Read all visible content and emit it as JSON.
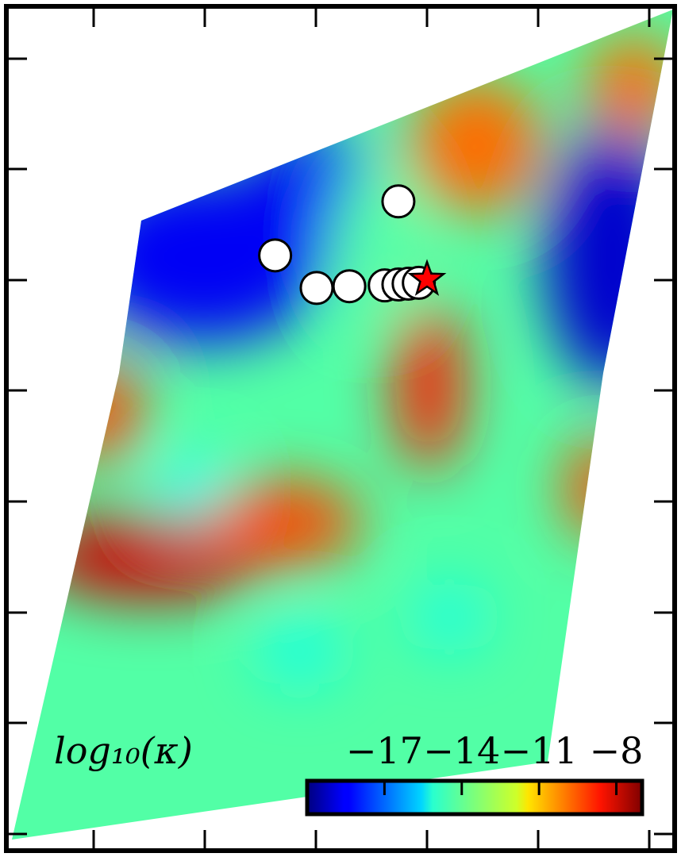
{
  "chart_data": {
    "type": "heatmap",
    "title": "",
    "xlabel": "",
    "ylabel": "",
    "grid": false,
    "colormap": "jet",
    "colorbar": {
      "label": "log₁₀(κ)",
      "range": [
        -20,
        -7
      ],
      "ticks": [
        -17,
        -14,
        -11,
        -8
      ],
      "tick_labels": [
        "−17",
        "−14",
        "−11",
        "−8"
      ],
      "placement": "bottom-right"
    },
    "field_blobs": [
      {
        "x": 0.3,
        "y": 0.3,
        "rx": 0.18,
        "ry": 0.1,
        "value": -18.5
      },
      {
        "x": 0.46,
        "y": 0.22,
        "rx": 0.1,
        "ry": 0.07,
        "value": -18.5
      },
      {
        "x": 0.9,
        "y": 0.3,
        "rx": 0.1,
        "ry": 0.15,
        "value": -19.0
      },
      {
        "x": 0.7,
        "y": 0.17,
        "rx": 0.1,
        "ry": 0.08,
        "value": -10.0
      },
      {
        "x": 0.93,
        "y": 0.1,
        "rx": 0.07,
        "ry": 0.06,
        "value": -10.0
      },
      {
        "x": 0.63,
        "y": 0.45,
        "rx": 0.05,
        "ry": 0.1,
        "value": -9.0
      },
      {
        "x": 0.15,
        "y": 0.48,
        "rx": 0.06,
        "ry": 0.06,
        "value": -9.5
      },
      {
        "x": 0.22,
        "y": 0.65,
        "rx": 0.17,
        "ry": 0.05,
        "value": -8.0
      },
      {
        "x": 0.42,
        "y": 0.61,
        "rx": 0.11,
        "ry": 0.05,
        "value": -9.5
      },
      {
        "x": 0.88,
        "y": 0.57,
        "rx": 0.05,
        "ry": 0.06,
        "value": -9.5
      },
      {
        "x": 0.28,
        "y": 0.57,
        "rx": 0.05,
        "ry": 0.04,
        "value": -15.0
      },
      {
        "x": 0.44,
        "y": 0.76,
        "rx": 0.06,
        "ry": 0.04,
        "value": -14.8
      },
      {
        "x": 0.66,
        "y": 0.72,
        "rx": 0.05,
        "ry": 0.04,
        "value": -14.8
      },
      {
        "x": 0.55,
        "y": 0.28,
        "rx": 0.06,
        "ry": 0.09,
        "value": -14.0
      }
    ],
    "points": [
      {
        "x": 0.585,
        "y": 0.235
      },
      {
        "x": 0.404,
        "y": 0.298
      },
      {
        "x": 0.465,
        "y": 0.336
      },
      {
        "x": 0.513,
        "y": 0.334
      },
      {
        "x": 0.565,
        "y": 0.333
      },
      {
        "x": 0.585,
        "y": 0.332
      },
      {
        "x": 0.6,
        "y": 0.331
      },
      {
        "x": 0.615,
        "y": 0.33
      }
    ],
    "star": {
      "x": 0.627,
      "y": 0.326
    }
  }
}
